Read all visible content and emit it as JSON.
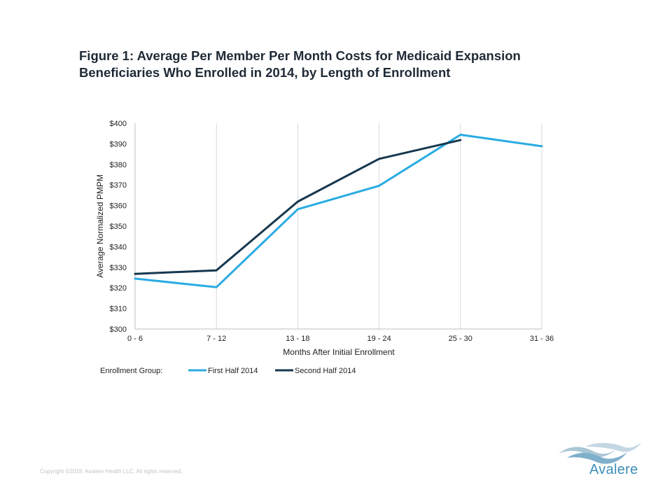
{
  "title": {
    "line1": "Figure 1: Average Per Member Per Month Costs for Medicaid Expansion",
    "line2": "Beneficiaries Who Enrolled in 2014, by Length of Enrollment"
  },
  "chart_data": {
    "type": "line",
    "categories": [
      "0 - 6",
      "7 - 12",
      "13 - 18",
      "19 - 24",
      "25 - 30",
      "31 - 36"
    ],
    "series": [
      {
        "name": "First Half 2014",
        "color": "#29abe2",
        "values": [
          324.5,
          320.3,
          358.2,
          369.6,
          394.4,
          388.8
        ]
      },
      {
        "name": "Second Half 2014",
        "color": "#16374f",
        "values": [
          326.8,
          328.5,
          361.9,
          382.7,
          391.8,
          null
        ]
      }
    ],
    "xlabel": "Months After Initial Enrollment",
    "ylabel": "Average Normalized PMPM",
    "ylim": [
      300,
      400
    ],
    "yticks": [
      300,
      310,
      320,
      330,
      340,
      350,
      360,
      370,
      380,
      390,
      400
    ],
    "ytick_prefix": "$",
    "grid": "vertical",
    "legend": {
      "title": "Enrollment Group:",
      "placement": "bottom-left"
    }
  },
  "footer": {
    "copyright": "Copyright ©2018. Avalere Health LLC. All rights reserved.",
    "logo_text": "Avalere"
  },
  "colors": {
    "gridline": "#d9d9d9",
    "axis": "#bfbfbf",
    "logo": "#3d8fb8"
  }
}
